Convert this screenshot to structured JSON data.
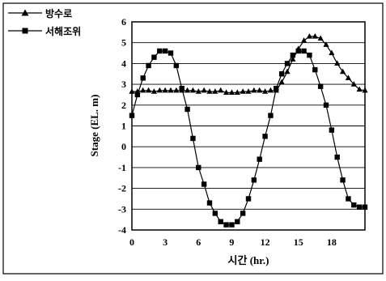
{
  "chart_data": {
    "type": "line",
    "xlabel": "시간 (hr.)",
    "ylabel": "Stage (EL. m)",
    "xlim": [
      0,
      21
    ],
    "ylim": [
      -4,
      6
    ],
    "xticks": [
      "0",
      "3",
      "6",
      "9",
      "12",
      "15",
      "18"
    ],
    "yticks": [
      "6",
      "5",
      "4",
      "3",
      "2",
      "1",
      "0",
      "-1",
      "-2",
      "-3",
      "-4"
    ],
    "grid": "horizontal",
    "legend_position": "top-left-outside",
    "series": [
      {
        "name": "방수로",
        "marker": "triangle",
        "color": "#000000",
        "x": [
          0,
          0.5,
          1,
          1.5,
          2,
          2.5,
          3,
          3.5,
          4,
          4.5,
          5,
          5.5,
          6,
          6.5,
          7,
          7.5,
          8,
          8.5,
          9,
          9.5,
          10,
          10.5,
          11,
          11.5,
          12,
          12.5,
          13,
          13.5,
          14,
          14.5,
          15,
          15.5,
          16,
          16.5,
          17,
          17.5,
          18,
          18.5,
          19,
          19.5,
          20,
          20.5,
          21
        ],
        "y": [
          2.65,
          2.65,
          2.7,
          2.7,
          2.65,
          2.7,
          2.7,
          2.7,
          2.7,
          2.7,
          2.7,
          2.7,
          2.65,
          2.7,
          2.65,
          2.65,
          2.7,
          2.6,
          2.6,
          2.6,
          2.65,
          2.65,
          2.7,
          2.7,
          2.65,
          2.7,
          2.7,
          3.1,
          3.6,
          4.2,
          4.7,
          5.1,
          5.3,
          5.3,
          5.2,
          4.9,
          4.5,
          4.0,
          3.6,
          3.3,
          3.0,
          2.75,
          2.7
        ]
      },
      {
        "name": "서해조위",
        "marker": "square",
        "color": "#000000",
        "x": [
          0,
          0.5,
          1,
          1.5,
          2,
          2.5,
          3,
          3.5,
          4,
          4.5,
          5,
          5.5,
          6,
          6.5,
          7,
          7.5,
          8,
          8.5,
          9,
          9.5,
          10,
          10.5,
          11,
          11.5,
          12,
          12.5,
          13,
          13.5,
          14,
          14.5,
          15,
          15.5,
          16,
          16.5,
          17,
          17.5,
          18,
          18.5,
          19,
          19.5,
          20,
          20.5,
          21
        ],
        "y": [
          1.5,
          2.5,
          3.3,
          3.9,
          4.3,
          4.6,
          4.6,
          4.5,
          3.9,
          2.8,
          1.8,
          0.4,
          -1.0,
          -1.8,
          -2.7,
          -3.2,
          -3.6,
          -3.75,
          -3.75,
          -3.6,
          -3.2,
          -2.5,
          -1.6,
          -0.6,
          0.5,
          1.5,
          2.8,
          3.5,
          4.0,
          4.4,
          4.6,
          4.6,
          4.4,
          3.7,
          2.9,
          2.0,
          0.8,
          -0.5,
          -1.6,
          -2.5,
          -2.8,
          -2.9,
          -2.9
        ]
      }
    ]
  }
}
